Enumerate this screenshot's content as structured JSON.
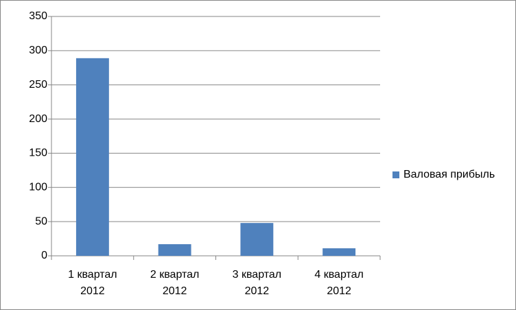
{
  "chart_data": {
    "type": "bar",
    "categories": [
      "1 квартал 2012",
      "2 квартал 2012",
      "3 квартал 2012",
      "4 квартал 2012"
    ],
    "series": [
      {
        "name": "Валовая прибыль",
        "color": "#4f81bd",
        "values": [
          289,
          17,
          48,
          11
        ]
      }
    ],
    "ylim": [
      0,
      350
    ],
    "yticks": [
      0,
      50,
      100,
      150,
      200,
      250,
      300,
      350
    ],
    "grid": true,
    "legend": "right"
  }
}
